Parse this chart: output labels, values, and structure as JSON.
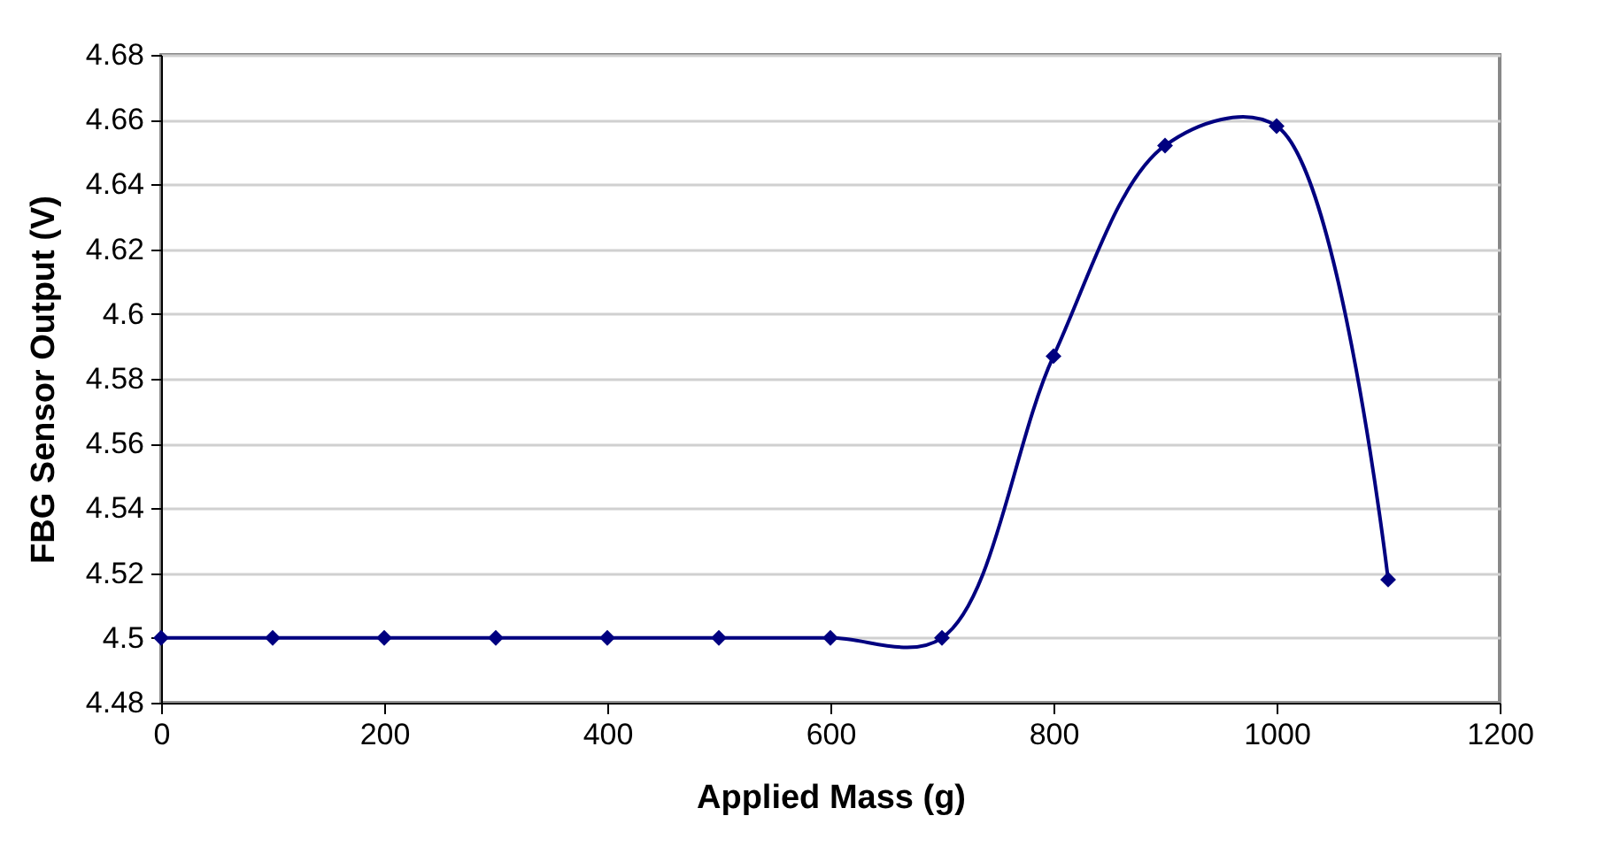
{
  "chart_data": {
    "type": "line",
    "xlabel": "Applied Mass (g)",
    "ylabel": "FBG Sensor Output (V)",
    "x": [
      0,
      100,
      200,
      300,
      400,
      500,
      600,
      700,
      800,
      900,
      1000,
      1100
    ],
    "series": [
      {
        "color": "#000080",
        "values": [
          4.5,
          4.5,
          4.5,
          4.5,
          4.5,
          4.5,
          4.5,
          4.5,
          4.587,
          4.652,
          4.658,
          4.518
        ]
      }
    ],
    "xlim": [
      0,
      1200
    ],
    "xticks": [
      0,
      200,
      400,
      600,
      800,
      1000,
      1200
    ],
    "ylim": [
      4.48,
      4.68
    ],
    "yticks": [
      4.48,
      4.5,
      4.52,
      4.54,
      4.56,
      4.58,
      4.6,
      4.62,
      4.64,
      4.66,
      4.68
    ],
    "grid": "y",
    "marker": "diamond",
    "line_style": "solid"
  }
}
